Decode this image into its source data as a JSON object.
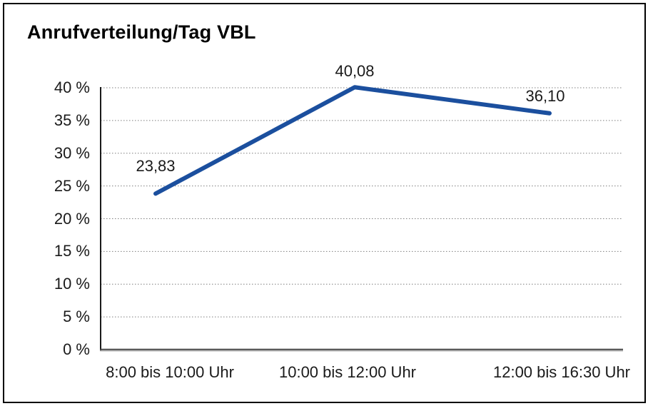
{
  "chart": {
    "title": "Anrufverteilung/Tag VBL"
  },
  "chart_data": {
    "type": "line",
    "title": "Anrufverteilung/Tag VBL",
    "categories": [
      "8:00 bis 10:00 Uhr",
      "10:00 bis 12:00 Uhr",
      "12:00 bis 16:30 Uhr"
    ],
    "values": [
      23.83,
      40.08,
      36.1
    ],
    "value_labels": [
      "23,83",
      "40,08",
      "36,10"
    ],
    "xlabel": "",
    "ylabel": "",
    "ylim": [
      0,
      40
    ],
    "yticks": [
      0,
      5,
      10,
      15,
      20,
      25,
      30,
      35,
      40
    ],
    "ytick_labels": [
      "0 %",
      "5 %",
      "10 %",
      "15 %",
      "20 %",
      "25 %",
      "30 %",
      "35 %",
      "40 %"
    ],
    "grid": "horizontal-dotted",
    "legend": "none",
    "colors": {
      "line": "#1B4F9E",
      "gridline": "#7f7f7f",
      "y_axis": "#000000",
      "x_axis_dark": "#3d3d3d",
      "x_axis_light": "#a6a6a6",
      "text": "#1a1a1a",
      "frame_border": "#000000",
      "background": "#ffffff"
    },
    "line_width": 6
  }
}
